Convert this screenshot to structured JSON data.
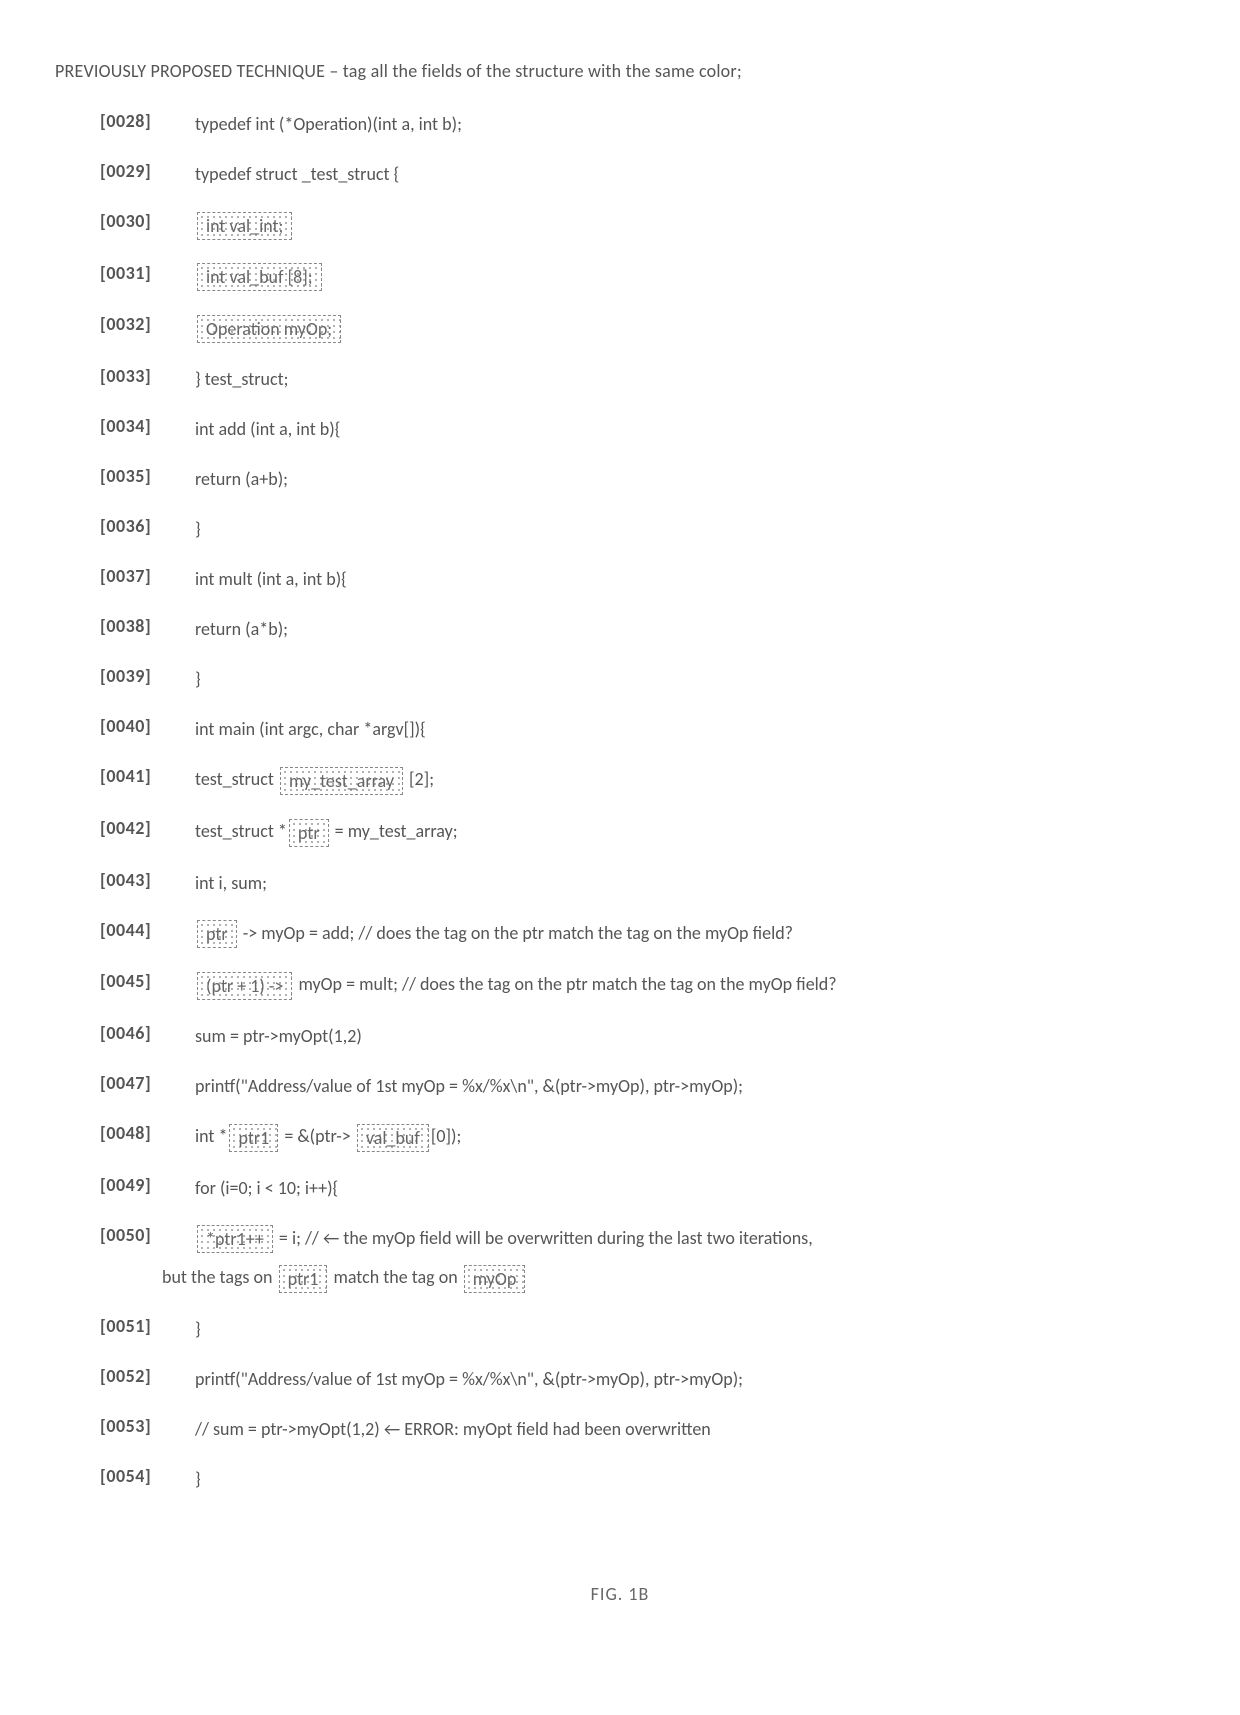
{
  "title": "PREVIOUSLY PROPOSED TECHNIQUE – tag all the fields of the structure with the same color;",
  "figure_label": "FIG. 1B",
  "lines": [
    {
      "num": "[0028]",
      "parts": [
        {
          "t": "typedef int (*Operation)(int a, int b);"
        }
      ]
    },
    {
      "num": "[0029]",
      "parts": [
        {
          "t": "typedef struct _test_struct {"
        }
      ]
    },
    {
      "num": "[0030]",
      "parts": [
        {
          "t": "int val_int;",
          "tag": true
        }
      ]
    },
    {
      "num": "[0031]",
      "parts": [
        {
          "t": "int val_buf [8];",
          "tag": true
        }
      ]
    },
    {
      "num": "[0032]",
      "parts": [
        {
          "t": "Operation myOp;",
          "tag": true
        }
      ]
    },
    {
      "num": "[0033]",
      "parts": [
        {
          "t": "} test_struct;"
        }
      ]
    },
    {
      "num": "[0034]",
      "parts": [
        {
          "t": "int add (int a, int b){"
        }
      ]
    },
    {
      "num": "[0035]",
      "parts": [
        {
          "t": "return (a+b);"
        }
      ]
    },
    {
      "num": "[0036]",
      "parts": [
        {
          "t": "}"
        }
      ]
    },
    {
      "num": "[0037]",
      "parts": [
        {
          "t": "int mult (int a, int b){"
        }
      ]
    },
    {
      "num": "[0038]",
      "parts": [
        {
          "t": "return (a*b);"
        }
      ]
    },
    {
      "num": "[0039]",
      "parts": [
        {
          "t": "}"
        }
      ]
    },
    {
      "num": "[0040]",
      "parts": [
        {
          "t": "int main (int argc, char *argv[]){"
        }
      ]
    },
    {
      "num": "[0041]",
      "parts": [
        {
          "t": "test_struct   "
        },
        {
          "t": "my_test_array",
          "tag": true
        },
        {
          "t": "  [2];"
        }
      ]
    },
    {
      "num": "[0042]",
      "parts": [
        {
          "t": "test_struct *"
        },
        {
          "t": "ptr",
          "tag": true
        },
        {
          "t": " = my_test_array;"
        }
      ]
    },
    {
      "num": "[0043]",
      "parts": [
        {
          "t": "int i, sum;"
        }
      ]
    },
    {
      "num": "[0044]",
      "parts": [
        {
          "t": "ptr",
          "tag": true
        },
        {
          "t": " -> myOp = add; // does the tag on the ptr match the tag on the myOp field?"
        }
      ]
    },
    {
      "num": "[0045]",
      "parts": [
        {
          "t": "(ptr + 1) ->",
          "tag": true
        },
        {
          "t": " myOp = mult; // does the tag on the ptr match the tag on the myOp field?"
        }
      ]
    },
    {
      "num": "[0046]",
      "parts": [
        {
          "t": "sum = ptr->myOpt(1,2)"
        }
      ]
    },
    {
      "num": "[0047]",
      "parts": [
        {
          "t": "printf(\"Address/value of 1st myOp = %x/%x\\n\", &(ptr->myOp), ptr->myOp);"
        }
      ]
    },
    {
      "num": "[0048]",
      "parts": [
        {
          "t": "int *"
        },
        {
          "t": "ptr1",
          "tag": true
        },
        {
          "t": " = &(ptr-> "
        },
        {
          "t": "val_buf",
          "tag": true
        },
        {
          "t": "[0]);"
        }
      ]
    },
    {
      "num": "[0049]",
      "parts": [
        {
          "t": "for (i=0; i < 10; i++){"
        }
      ]
    },
    {
      "num": "[0050]",
      "parts": [
        {
          "t": "*ptr1++",
          "tag": true
        },
        {
          "t": " = i; // ←  the myOp field will be overwritten during the last two iterations,"
        }
      ]
    }
  ],
  "continuation": {
    "parts": [
      {
        "t": "but the tags on "
      },
      {
        "t": "ptr1",
        "tag": true
      },
      {
        "t": " match the tag on "
      },
      {
        "t": "myOp",
        "tag": true
      }
    ]
  },
  "lines_after": [
    {
      "num": "[0051]",
      "parts": [
        {
          "t": "}"
        }
      ]
    },
    {
      "num": "[0052]",
      "parts": [
        {
          "t": "printf(\"Address/value of 1st myOp = %x/%x\\n\", &(ptr->myOp), ptr->myOp);"
        }
      ]
    },
    {
      "num": "[0053]",
      "parts": [
        {
          "t": "// sum = ptr->myOpt(1,2) ← ERROR: myOpt field had been overwritten"
        }
      ]
    },
    {
      "num": "[0054]",
      "parts": [
        {
          "t": "}"
        }
      ]
    }
  ]
}
